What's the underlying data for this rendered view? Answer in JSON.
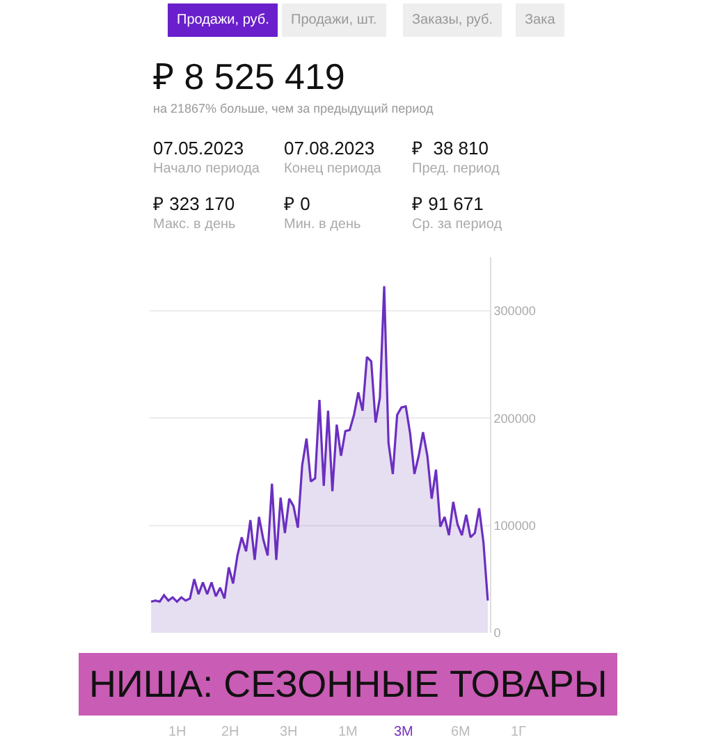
{
  "chart_data": {
    "type": "area",
    "title": "₽ 8 525 419",
    "subtitle": "на 21867% больше, чем за предыдущий период",
    "annotations": [
      "Продажи, руб.",
      "Продажи, шт.",
      "Заказы, руб.",
      "Зака",
      "07.05.2023",
      "Начало периода",
      "07.08.2023",
      "Конец периода",
      "₽  38 810",
      "Пред. период",
      "₽ 323 170",
      "Макс. в день",
      "₽ 0",
      "Мин. в день",
      "₽ 91 671",
      "Ср. за период",
      "НИША: СЕЗОННЫЕ ТОВАРЫ",
      "1Н",
      "2Н",
      "3Н",
      "1М",
      "3М",
      "6М",
      "1Г"
    ],
    "categories": [
      null,
      null,
      null,
      null,
      null,
      null,
      null,
      null,
      null,
      null,
      null,
      null,
      null,
      null,
      null,
      null,
      null,
      null,
      null,
      null,
      null,
      null,
      null,
      null,
      null,
      null,
      null,
      null,
      null,
      null,
      null,
      null,
      null,
      null,
      null,
      null,
      null,
      null,
      null,
      null,
      null,
      null,
      null,
      null,
      null,
      null,
      null,
      null,
      null,
      null,
      null,
      null,
      null,
      null,
      null,
      null,
      null,
      null,
      null,
      null,
      null,
      null,
      null,
      null,
      null,
      null,
      null,
      null,
      null,
      null,
      null,
      null,
      null,
      null,
      null,
      null,
      null,
      null,
      null
    ],
    "series": [
      {
        "color": "#6b2fc0",
        "values": [
          29000,
          30000,
          29000,
          35000,
          30000,
          33000,
          29000,
          33000,
          30000,
          32000,
          50000,
          36000,
          47000,
          36000,
          47000,
          34000,
          42000,
          32000,
          61000,
          46000,
          72000,
          89000,
          76000,
          105000,
          68000,
          108000,
          87000,
          72000,
          139000,
          68000,
          126000,
          93000,
          125000,
          118000,
          98000,
          156000,
          181000,
          141000,
          144000,
          217000,
          137000,
          207000,
          132000,
          194000,
          165000,
          188000,
          189000,
          203000,
          224000,
          207000,
          257000,
          253000,
          196000,
          219000,
          323000,
          177000,
          148000,
          203000,
          210000,
          211000,
          186000,
          148000,
          165000,
          187000,
          165000,
          125000,
          152000,
          99000,
          108000,
          91000,
          122000,
          101000,
          91000,
          110000,
          89000,
          93000,
          116000,
          84000,
          30000
        ]
      }
    ],
    "ylim": [
      0,
      350000
    ],
    "yticks": [
      0,
      100000,
      200000,
      300000
    ],
    "tick_labels": "y",
    "grid": "y"
  }
}
